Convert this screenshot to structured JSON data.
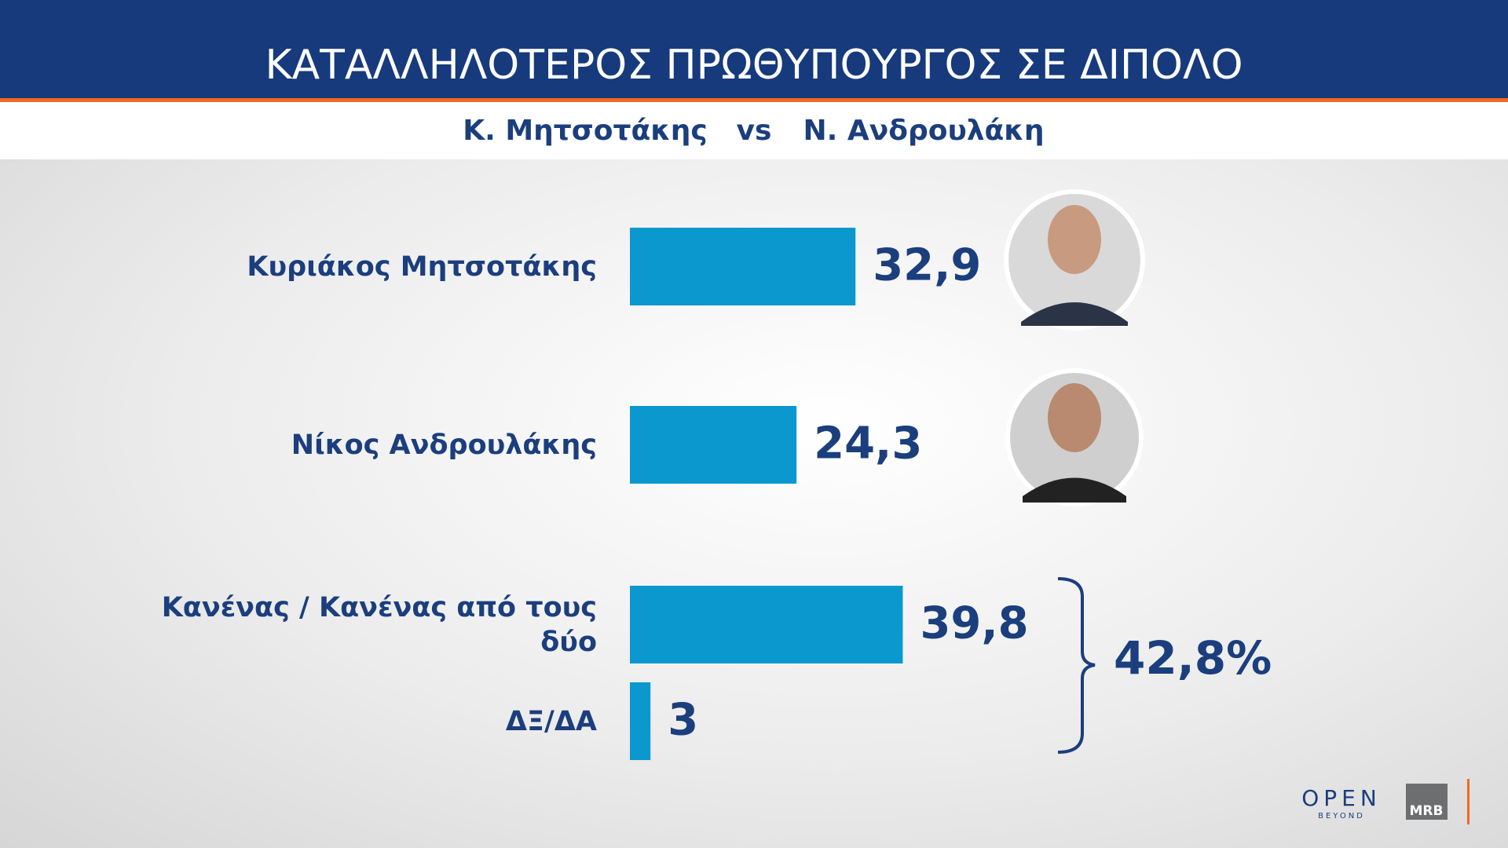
{
  "chart_data": {
    "type": "bar",
    "title": "ΚΑΤΑΛΛΗΛΟΤΕΡΟΣ ΠΡΩΘΥΠΟΥΡΓΟΣ ΣΕ ΔΙΠΟΛΟ",
    "subtitle": [
      "Κ. Μητσοτάκης",
      "vs",
      "Ν. Ανδρουλάκη"
    ],
    "categories": [
      "Κυριάκος Μητσοτάκης",
      "Νίκος Ανδρουλάκης",
      "Κανένας / Κανένας από τους δύο",
      "ΔΞ/ΔΑ"
    ],
    "values": [
      32.9,
      24.3,
      39.8,
      3
    ],
    "value_labels": [
      "32,9",
      "24,3",
      "39,8",
      "3"
    ],
    "color": "#0b98cf",
    "annotation": "42,8%"
  },
  "branding": {
    "open": "OPEN",
    "open_sub": "BEYOND",
    "mrb": "MRB"
  }
}
